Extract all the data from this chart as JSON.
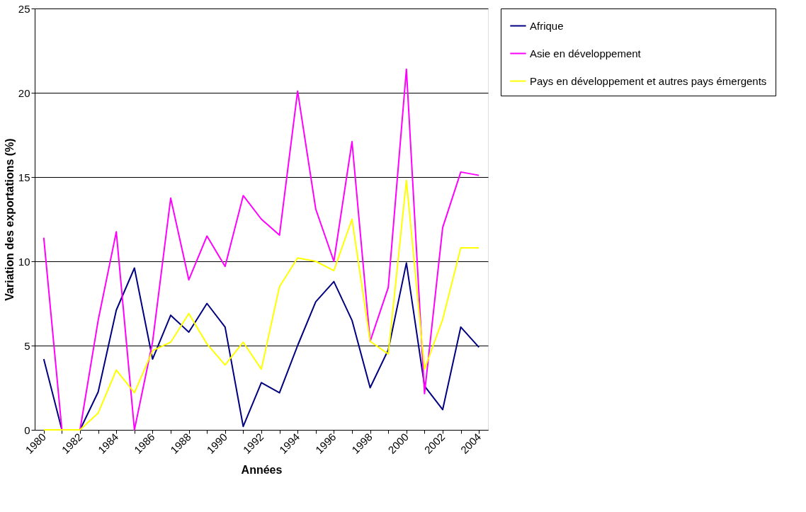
{
  "chart_data": {
    "type": "line",
    "xlabel": "Années",
    "ylabel": "Variation des exportations (%)",
    "categories": [
      "1980",
      null,
      "1982",
      null,
      "1984",
      null,
      "1986",
      null,
      "1988",
      null,
      "1990",
      null,
      "1992",
      null,
      "1994",
      null,
      "1996",
      null,
      "1998",
      null,
      "2000",
      null,
      "2002",
      null,
      "2004"
    ],
    "series": [
      {
        "name": "Afrique",
        "color": "#000080",
        "values": [
          4.2,
          0,
          0,
          2.25,
          7.1,
          9.6,
          4.2,
          6.8,
          5.8,
          7.5,
          6.1,
          0.2,
          2.8,
          2.2,
          5.0,
          7.6,
          8.8,
          6.5,
          2.5,
          4.75,
          9.9,
          2.6,
          1.2,
          6.1,
          4.9
        ]
      },
      {
        "name": "Asie en développement",
        "color": "#ff00ff",
        "values": [
          11.4,
          0,
          0,
          6.5,
          11.75,
          0,
          5.2,
          13.75,
          8.9,
          11.5,
          9.7,
          13.9,
          12.5,
          11.55,
          20.1,
          13.1,
          10.0,
          17.1,
          5.25,
          8.45,
          21.4,
          2.15,
          12.0,
          15.3,
          15.1
        ]
      },
      {
        "name": "Pays en développement et autres pays émergents",
        "color": "#ffff00",
        "values": [
          0,
          0,
          0,
          1.0,
          3.55,
          2.2,
          4.7,
          5.2,
          6.9,
          5.1,
          3.85,
          5.2,
          3.6,
          8.5,
          10.2,
          10.0,
          9.45,
          12.5,
          5.25,
          4.5,
          14.8,
          3.6,
          6.55,
          10.8,
          10.8
        ]
      }
    ],
    "ylim": [
      0,
      25
    ],
    "yticks": [
      0,
      5,
      10,
      15,
      20,
      25
    ],
    "grid": "y",
    "legend": "right"
  }
}
